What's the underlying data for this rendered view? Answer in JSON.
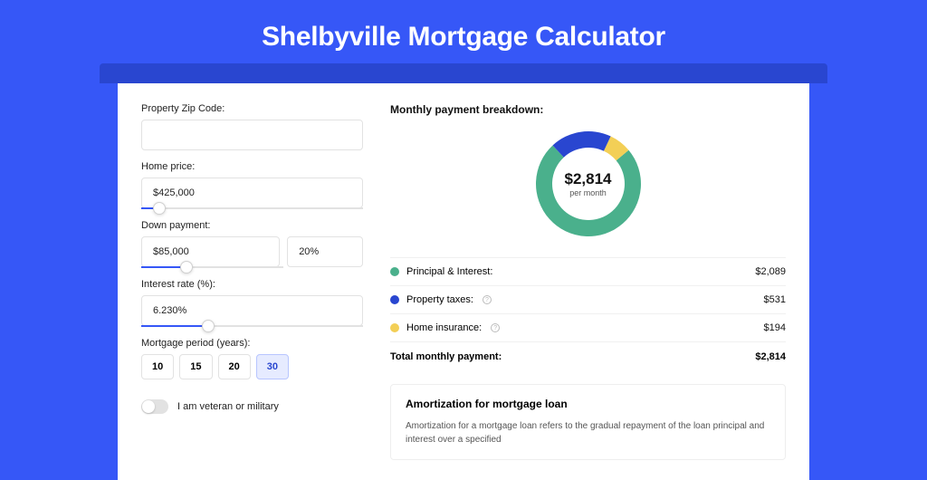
{
  "page": {
    "title": "Shelbyville Mortgage Calculator",
    "background_color": "#3657f7",
    "shadow_color": "#2946d0",
    "card_color": "#ffffff"
  },
  "form": {
    "zip": {
      "label": "Property Zip Code:",
      "value": ""
    },
    "home_price": {
      "label": "Home price:",
      "value": "$425,000",
      "slider_pct": 8
    },
    "down_payment": {
      "label": "Down payment:",
      "value": "$85,000",
      "pct_value": "20%",
      "slider_pct": 20
    },
    "interest_rate": {
      "label": "Interest rate (%):",
      "value": "6.230%",
      "slider_pct": 30
    },
    "period": {
      "label": "Mortgage period (years):",
      "options": [
        "10",
        "15",
        "20",
        "30"
      ],
      "active": "30"
    },
    "veteran": {
      "label": "I am veteran or military",
      "on": false
    }
  },
  "breakdown": {
    "title": "Monthly payment breakdown:",
    "donut": {
      "amount": "$2,814",
      "sub": "per month",
      "slices": [
        {
          "label": "Principal & Interest:",
          "value": "$2,089",
          "color": "#4ab08c",
          "pct": 74.2
        },
        {
          "label": "Property taxes:",
          "value": "$531",
          "color": "#2946d0",
          "pct": 18.9,
          "info": true
        },
        {
          "label": "Home insurance:",
          "value": "$194",
          "color": "#f3cf56",
          "pct": 6.9,
          "info": true
        }
      ]
    },
    "total": {
      "label": "Total monthly payment:",
      "value": "$2,814"
    }
  },
  "amortization": {
    "title": "Amortization for mortgage loan",
    "text": "Amortization for a mortgage loan refers to the gradual repayment of the loan principal and interest over a specified"
  }
}
